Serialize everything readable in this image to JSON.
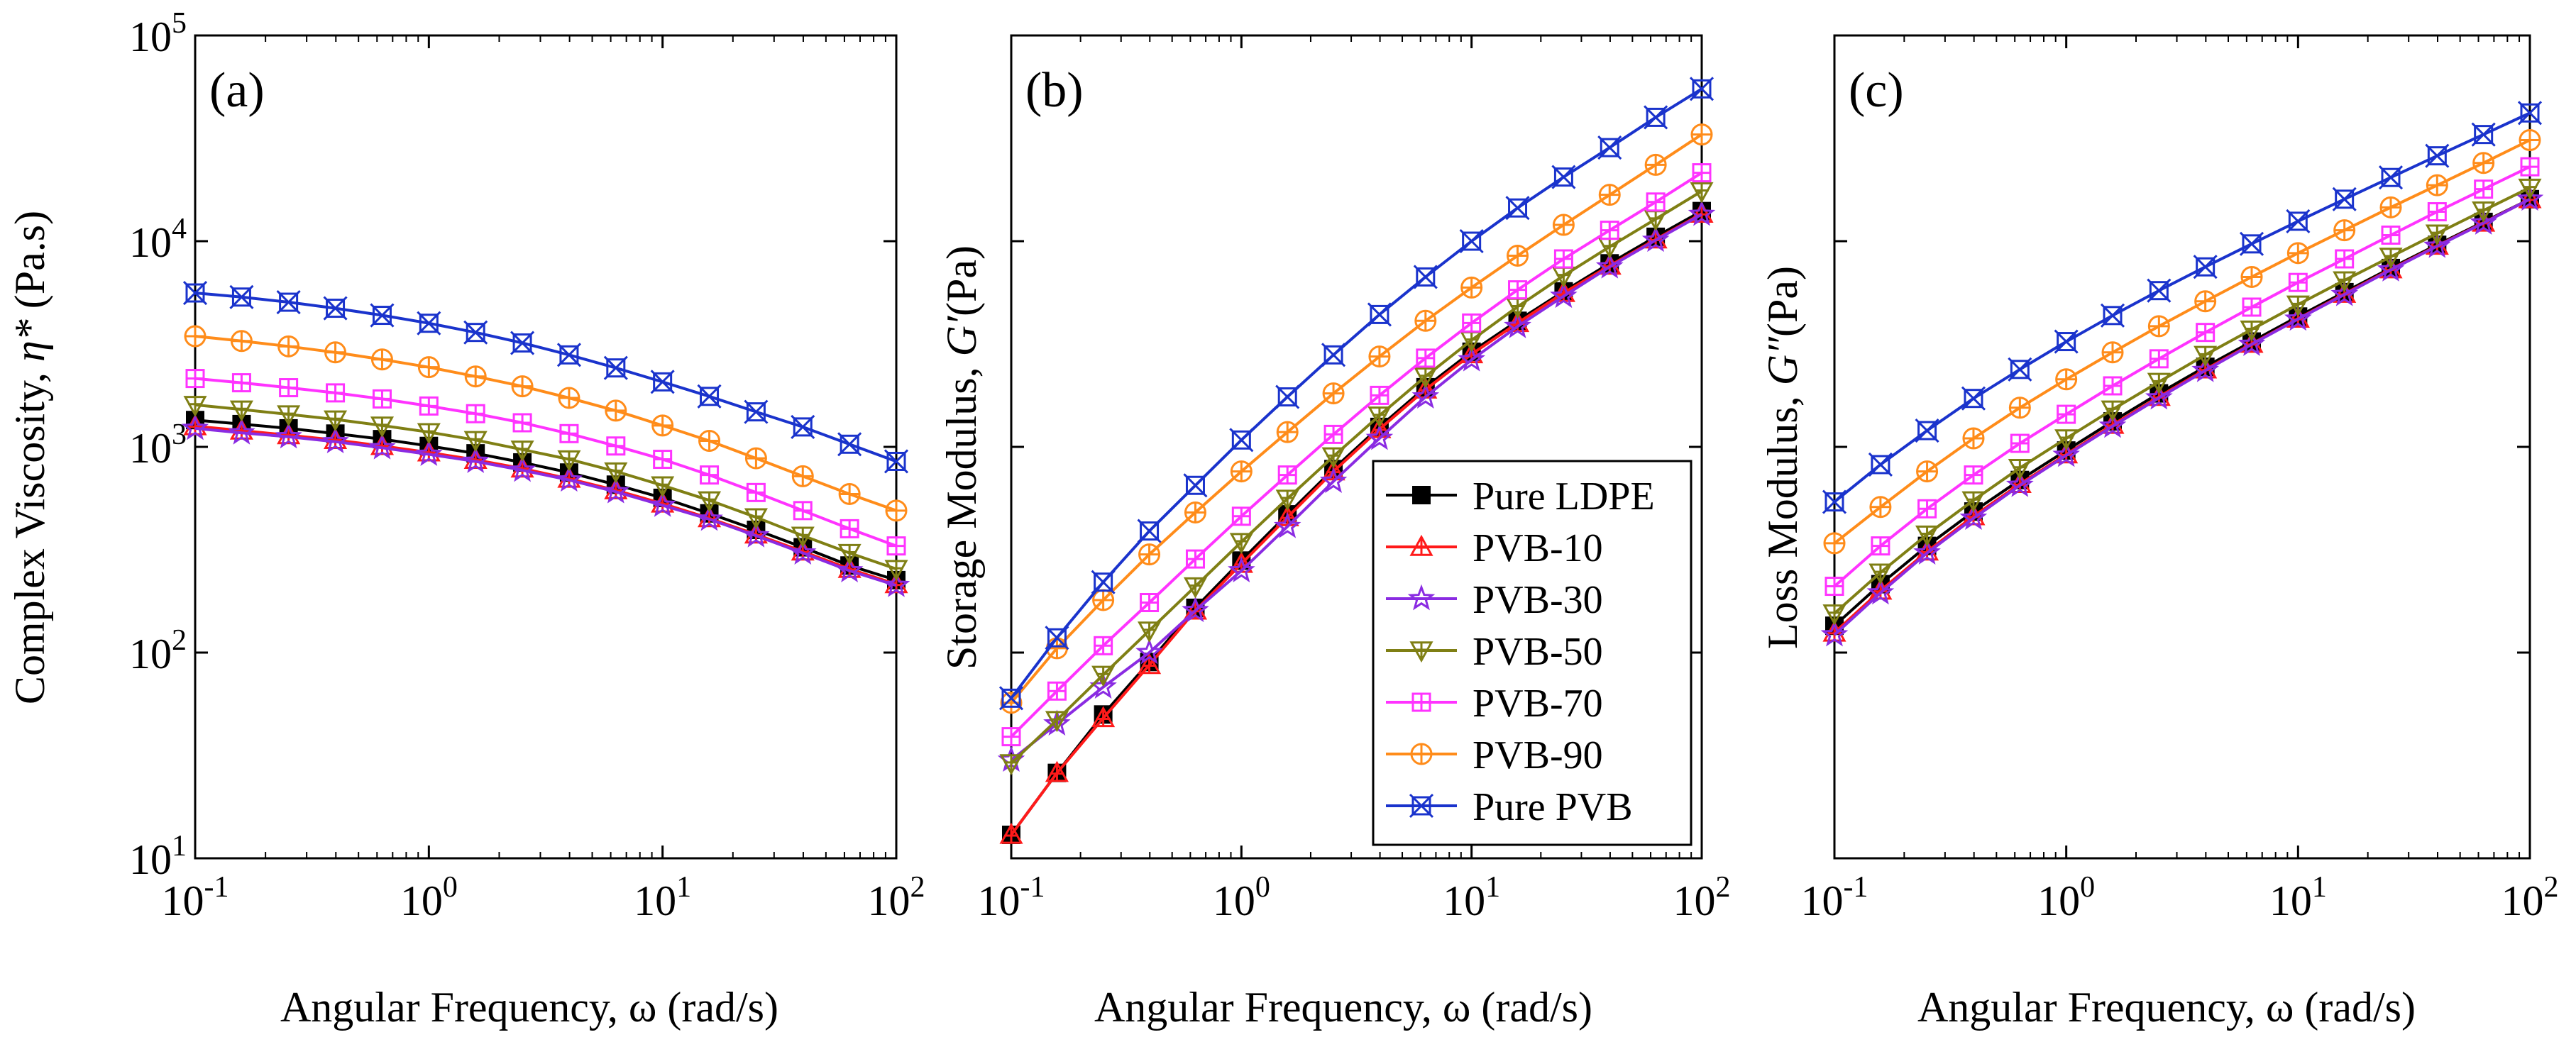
{
  "figure": {
    "x_axis_label": "Angular Frequency, ω (rad/s)"
  },
  "series_styles": [
    {
      "name": "Pure LDPE",
      "color": "#000000",
      "marker": "filled-square"
    },
    {
      "name": "PVB-10",
      "color": "#ff1a1a",
      "marker": "triangle-up"
    },
    {
      "name": "PVB-30",
      "color": "#8a2be2",
      "marker": "star"
    },
    {
      "name": "PVB-50",
      "color": "#7f7f14",
      "marker": "triangle-down"
    },
    {
      "name": "PVB-70",
      "color": "#ff33ff",
      "marker": "square-plus"
    },
    {
      "name": "PVB-90",
      "color": "#ff8c1a",
      "marker": "circle-plus"
    },
    {
      "name": "Pure PVB",
      "color": "#1a33cc",
      "marker": "square-x"
    }
  ],
  "chart_data": [
    {
      "type": "line",
      "panel_label": "(a)",
      "xlabel": "Angular Frequency, ω (rad/s)",
      "ylabel_main": "Complex Viscosity, ",
      "ylabel_symbol": "η*",
      "ylabel_unit": " (Pa.s)",
      "xscale": "log",
      "yscale": "log",
      "xlim": [
        0.1,
        100
      ],
      "ylim": [
        10,
        100000
      ],
      "x_ticks": [
        "10^-1",
        "10^0",
        "10^1",
        "10^2"
      ],
      "y_ticks": [
        "10^1",
        "10^2",
        "10^3",
        "10^4",
        "10^5"
      ],
      "legend": false,
      "x": [
        0.1,
        0.158,
        0.251,
        0.398,
        0.631,
        1,
        1.585,
        2.512,
        3.981,
        6.31,
        10,
        15.85,
        25.12,
        39.81,
        63.1,
        100
      ],
      "series": [
        {
          "name": "Pure LDPE",
          "values": [
            1350,
            1290,
            1230,
            1160,
            1090,
            1010,
            930,
            840,
            750,
            655,
            565,
            475,
            395,
            325,
            265,
            225
          ]
        },
        {
          "name": "PVB-10",
          "values": [
            1260,
            1200,
            1140,
            1080,
            1010,
            940,
            865,
            785,
            700,
            615,
            530,
            450,
            375,
            310,
            255,
            215
          ]
        },
        {
          "name": "PVB-30",
          "values": [
            1230,
            1170,
            1120,
            1060,
            990,
            920,
            850,
            770,
            690,
            605,
            520,
            445,
            370,
            305,
            250,
            212
          ]
        },
        {
          "name": "PVB-50",
          "values": [
            1600,
            1520,
            1440,
            1360,
            1270,
            1180,
            1080,
            970,
            870,
            760,
            650,
            550,
            455,
            370,
            305,
            255
          ]
        },
        {
          "name": "PVB-70",
          "values": [
            2150,
            2050,
            1940,
            1830,
            1710,
            1580,
            1450,
            1310,
            1160,
            1010,
            870,
            730,
            600,
            490,
            400,
            330
          ]
        },
        {
          "name": "PVB-90",
          "values": [
            3450,
            3270,
            3080,
            2880,
            2660,
            2440,
            2200,
            1970,
            1730,
            1500,
            1270,
            1070,
            880,
            720,
            590,
            490
          ]
        },
        {
          "name": "Pure PVB",
          "values": [
            5600,
            5350,
            5050,
            4720,
            4360,
            3990,
            3600,
            3200,
            2800,
            2420,
            2070,
            1760,
            1480,
            1250,
            1030,
            850
          ]
        }
      ]
    },
    {
      "type": "line",
      "panel_label": "(b)",
      "xlabel": "Angular Frequency, ω (rad/s)",
      "ylabel_main": "Storage Modulus, ",
      "ylabel_symbol": "G′",
      "ylabel_unit": "(Pa)",
      "xscale": "log",
      "yscale": "log",
      "xlim": [
        0.1,
        100
      ],
      "ylim": [
        10,
        100000
      ],
      "x_ticks": [
        "10^-1",
        "10^0",
        "10^1",
        "10^2"
      ],
      "y_ticks": [],
      "legend": true,
      "legend_position": "lower-right",
      "x": [
        0.1,
        0.158,
        0.251,
        0.398,
        0.631,
        1,
        1.585,
        2.512,
        3.981,
        6.31,
        10,
        15.85,
        25.12,
        39.81,
        63.1,
        100
      ],
      "series": [
        {
          "name": "Pure LDPE",
          "values": [
            13,
            26,
            50,
            90,
            165,
            280,
            470,
            780,
            1250,
            1950,
            2900,
            4100,
            5700,
            7800,
            10500,
            14000
          ]
        },
        {
          "name": "PVB-10",
          "values": [
            13,
            26,
            48,
            87,
            160,
            270,
            455,
            760,
            1220,
            1900,
            2820,
            4000,
            5600,
            7600,
            10200,
            13600
          ]
        },
        {
          "name": "PVB-30",
          "values": [
            30,
            45,
            68,
            100,
            160,
            250,
            410,
            680,
            1100,
            1750,
            2650,
            3850,
            5400,
            7500,
            10100,
            13500
          ]
        },
        {
          "name": "PVB-50",
          "values": [
            29,
            47,
            78,
            128,
            210,
            345,
            560,
            900,
            1420,
            2200,
            3300,
            4800,
            6800,
            9400,
            12800,
            17500
          ]
        },
        {
          "name": "PVB-70",
          "values": [
            39,
            65,
            108,
            175,
            285,
            460,
            730,
            1150,
            1780,
            2700,
            4000,
            5800,
            8200,
            11300,
            15500,
            21500
          ]
        },
        {
          "name": "PVB-90",
          "values": [
            57,
            105,
            180,
            300,
            480,
            760,
            1180,
            1820,
            2750,
            4100,
            5950,
            8500,
            12000,
            16800,
            23500,
            33000
          ]
        },
        {
          "name": "Pure PVB",
          "values": [
            60,
            118,
            220,
            390,
            650,
            1080,
            1750,
            2800,
            4400,
            6700,
            10000,
            14500,
            20500,
            28500,
            40000,
            55000
          ]
        }
      ]
    },
    {
      "type": "line",
      "panel_label": "(c)",
      "xlabel": "Angular Frequency, ω (rad/s)",
      "ylabel_main": "Loss Modulus, ",
      "ylabel_symbol": "G″",
      "ylabel_unit": "(Pa)",
      "xscale": "log",
      "yscale": "log",
      "xlim": [
        0.1,
        100
      ],
      "ylim": [
        10,
        100000
      ],
      "x_ticks": [
        "10^-1",
        "10^0",
        "10^1",
        "10^2"
      ],
      "y_ticks": [],
      "legend": false,
      "x": [
        0.1,
        0.158,
        0.251,
        0.398,
        0.631,
        1,
        1.585,
        2.512,
        3.981,
        6.31,
        10,
        15.85,
        25.12,
        39.81,
        63.1,
        100
      ],
      "series": [
        {
          "name": "Pure LDPE",
          "values": [
            135,
            215,
            330,
            485,
            690,
            960,
            1330,
            1820,
            2450,
            3250,
            4300,
            5650,
            7400,
            9600,
            12400,
            16000
          ]
        },
        {
          "name": "PVB-10",
          "values": [
            125,
            200,
            310,
            460,
            660,
            920,
            1280,
            1750,
            2380,
            3170,
            4200,
            5550,
            7300,
            9500,
            12300,
            16000
          ]
        },
        {
          "name": "PVB-30",
          "values": [
            122,
            195,
            305,
            450,
            650,
            910,
            1260,
            1730,
            2350,
            3150,
            4180,
            5500,
            7250,
            9450,
            12250,
            16000
          ]
        },
        {
          "name": "PVB-50",
          "values": [
            155,
            245,
            375,
            550,
            790,
            1100,
            1520,
            2070,
            2800,
            3720,
            4920,
            6450,
            8400,
            10900,
            14100,
            18200
          ]
        },
        {
          "name": "PVB-70",
          "values": [
            210,
            330,
            500,
            730,
            1040,
            1440,
            1980,
            2680,
            3600,
            4780,
            6300,
            8200,
            10700,
            13900,
            17900,
            23000
          ]
        },
        {
          "name": "PVB-90",
          "values": [
            340,
            510,
            760,
            1100,
            1550,
            2130,
            2880,
            3860,
            5100,
            6700,
            8750,
            11300,
            14600,
            18700,
            24000,
            31000
          ]
        },
        {
          "name": "Pure PVB",
          "values": [
            540,
            820,
            1200,
            1720,
            2380,
            3250,
            4350,
            5750,
            7500,
            9700,
            12500,
            16000,
            20400,
            26000,
            33000,
            42000
          ]
        }
      ]
    }
  ]
}
